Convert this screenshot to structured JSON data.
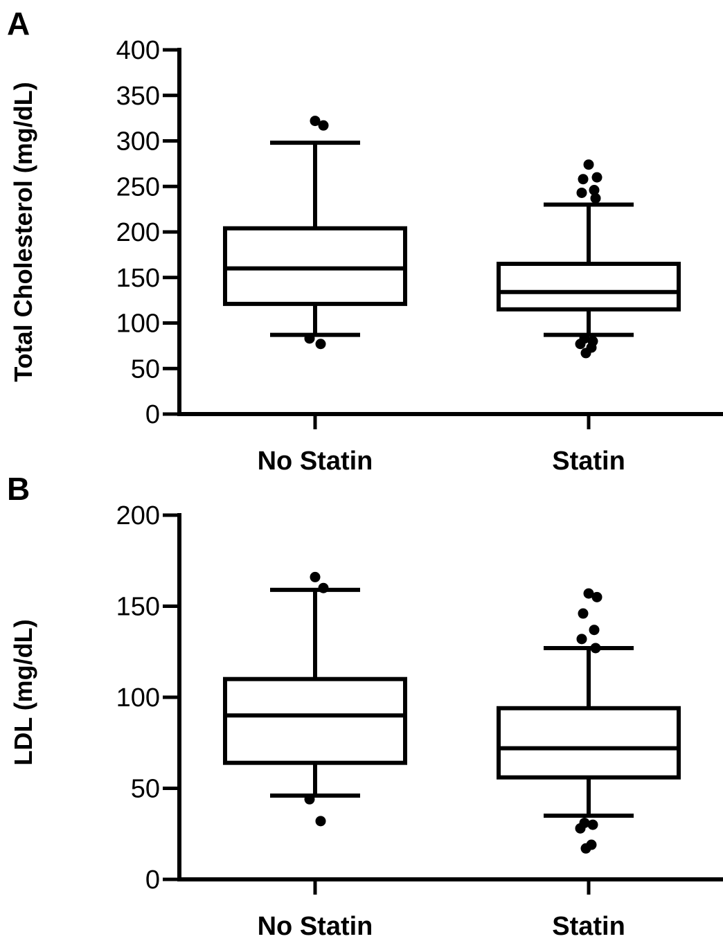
{
  "chart_data": [
    {
      "type": "box",
      "panel_label": "A",
      "ylabel": "Total Cholesterol (mg/dL)",
      "ylim": [
        0,
        400
      ],
      "yticks": [
        0,
        50,
        100,
        150,
        200,
        250,
        300,
        350,
        400
      ],
      "categories": [
        "No Statin",
        "Statin"
      ],
      "boxes": [
        {
          "category": "No Statin",
          "whisker_low": 87,
          "q1": 121,
          "median": 160,
          "q3": 204,
          "whisker_high": 298,
          "outliers": [
            322,
            317,
            83,
            77
          ]
        },
        {
          "category": "Statin",
          "whisker_low": 87,
          "q1": 115,
          "median": 134,
          "q3": 165,
          "whisker_high": 230,
          "outliers": [
            274,
            260,
            258,
            246,
            243,
            237,
            83,
            80,
            77,
            73,
            67
          ]
        }
      ]
    },
    {
      "type": "box",
      "panel_label": "B",
      "ylabel": "LDL (mg/dL)",
      "ylim": [
        0,
        200
      ],
      "yticks": [
        0,
        50,
        100,
        150,
        200
      ],
      "categories": [
        "No Statin",
        "Statin"
      ],
      "boxes": [
        {
          "category": "No Statin",
          "whisker_low": 46,
          "q1": 64,
          "median": 90,
          "q3": 110,
          "whisker_high": 159,
          "outliers": [
            166,
            160,
            44,
            32
          ]
        },
        {
          "category": "Statin",
          "whisker_low": 35,
          "q1": 56,
          "median": 72,
          "q3": 94,
          "whisker_high": 127,
          "outliers": [
            157,
            155,
            146,
            137,
            132,
            127,
            31,
            30,
            28,
            19,
            17
          ]
        }
      ]
    }
  ]
}
